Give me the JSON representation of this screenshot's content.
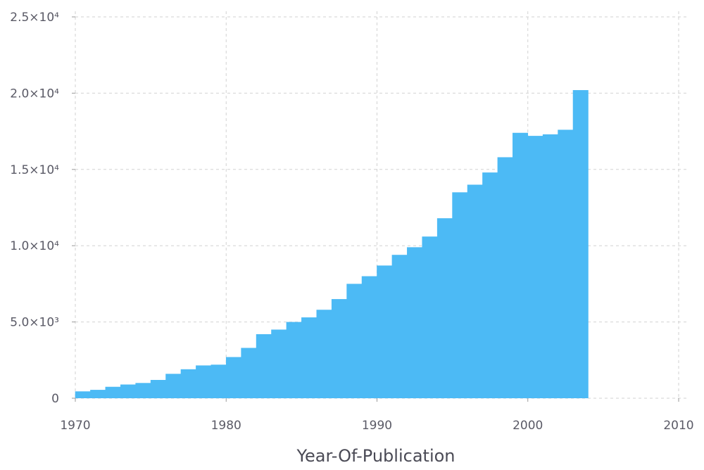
{
  "chart_data": {
    "type": "bar",
    "title": "",
    "xlabel": "Year-Of-Publication",
    "ylabel": "",
    "xlim": [
      1970,
      2010
    ],
    "ylim": [
      0,
      25000
    ],
    "grid": true,
    "bin_width": 1,
    "x": [
      1970,
      1971,
      1972,
      1973,
      1974,
      1975,
      1976,
      1977,
      1978,
      1979,
      1980,
      1981,
      1982,
      1983,
      1984,
      1985,
      1986,
      1987,
      1988,
      1989,
      1990,
      1991,
      1992,
      1993,
      1994,
      1995,
      1996,
      1997,
      1998,
      1999,
      2000,
      2001,
      2002,
      2003
    ],
    "values": [
      450,
      550,
      750,
      900,
      1000,
      1200,
      1600,
      1900,
      2150,
      2200,
      2700,
      3300,
      4200,
      4500,
      5000,
      5300,
      5800,
      6500,
      7500,
      8000,
      8700,
      9400,
      9900,
      10600,
      11800,
      13500,
      14000,
      14800,
      15800,
      17400,
      17200,
      17300,
      17600,
      20200
    ],
    "color": "#4cbaf5",
    "x_ticks": [
      "1970",
      "1980",
      "1990",
      "2000",
      "2010"
    ],
    "y_ticks": [
      "0",
      "5.0×10³",
      "1.0×10⁴",
      "1.5×10⁴",
      "2.0×10⁴",
      "2.5×10⁴"
    ]
  }
}
